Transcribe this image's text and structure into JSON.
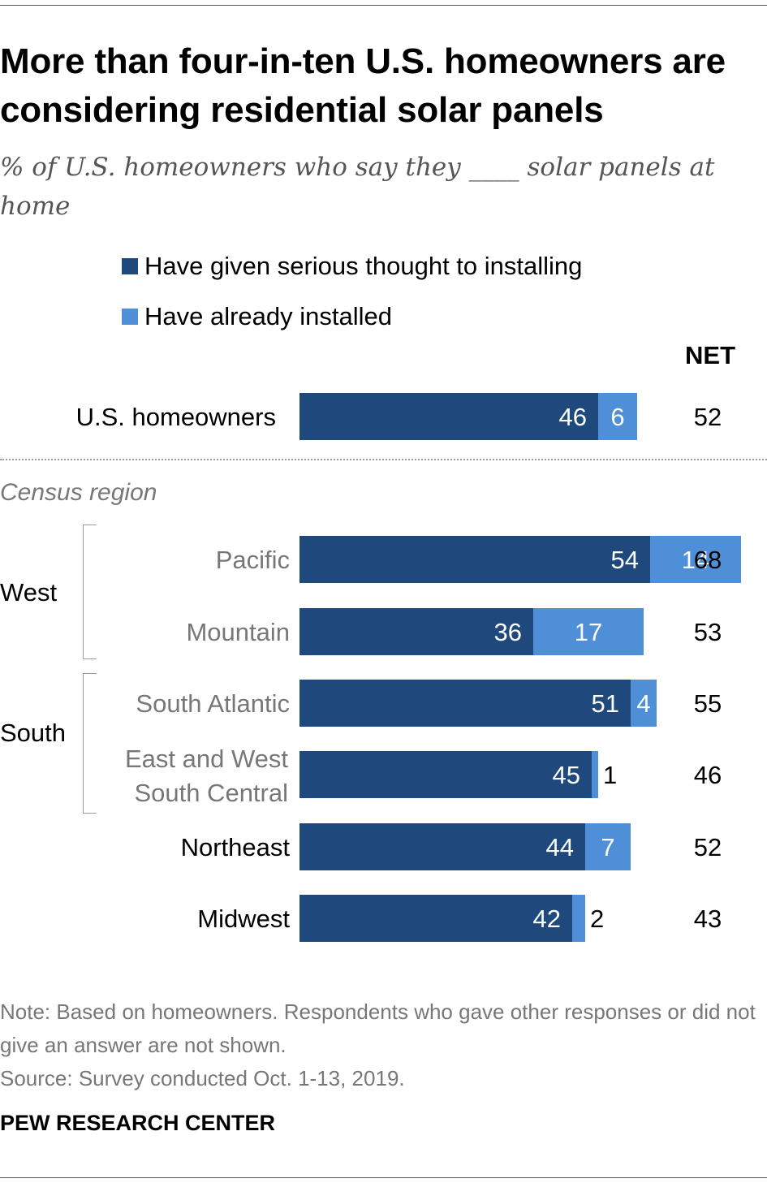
{
  "title": "More than four-in-ten U.S. homeowners are considering residential solar panels",
  "subtitle": "% of U.S. homeowners who say they ____ solar panels at home",
  "net_header": "NET",
  "census_label": "Census region",
  "groups": {
    "west": "West",
    "south": "South"
  },
  "note": "Note: Based on homeowners. Respondents who gave other responses or did not give an answer are not shown.",
  "source": "Source: Survey conducted Oct. 1-13, 2019.",
  "logo": "PEW RESEARCH CENTER",
  "colors": {
    "considering": "#1f497d",
    "installed": "#4f8fd8",
    "muted_text": "#777777"
  },
  "chart_data": {
    "type": "bar",
    "orientation": "horizontal",
    "stacked": true,
    "categories": [
      "U.S. homeowners",
      "Pacific",
      "Mountain",
      "South Atlantic",
      "East and West South Central",
      "Northeast",
      "Midwest"
    ],
    "series": [
      {
        "name": "Have given serious thought to installing",
        "values": [
          46,
          54,
          36,
          51,
          45,
          44,
          42
        ]
      },
      {
        "name": "Have already installed",
        "values": [
          6,
          14,
          17,
          4,
          1,
          7,
          2
        ]
      }
    ],
    "net": [
      52,
      68,
      53,
      55,
      46,
      52,
      43
    ],
    "xlim": [
      0,
      100
    ]
  }
}
